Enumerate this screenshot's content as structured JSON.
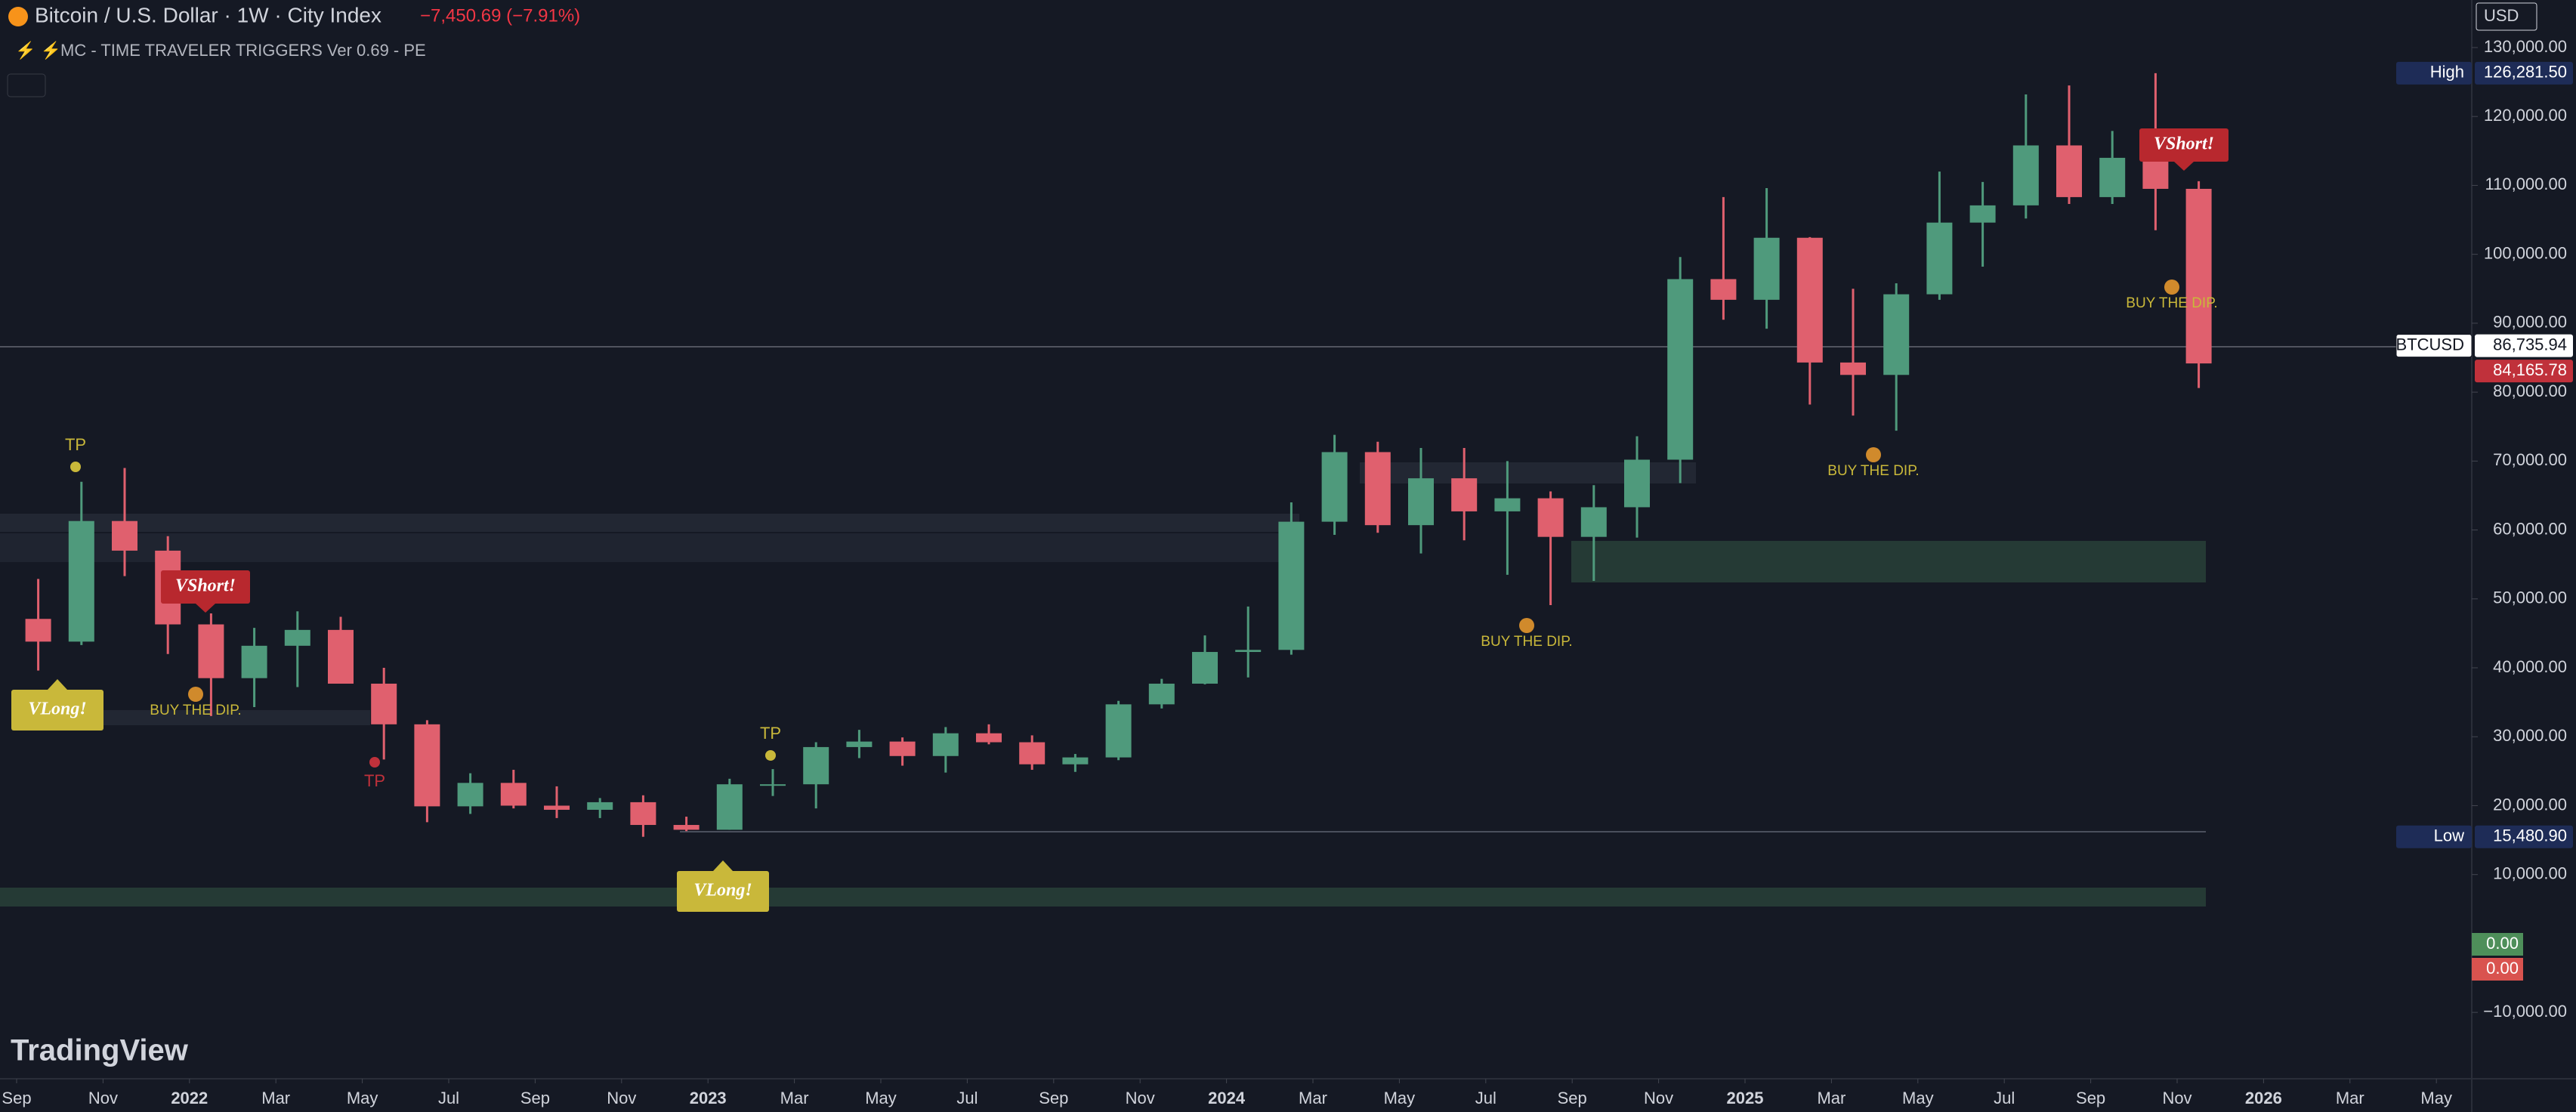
{
  "chart_data": {
    "type": "candlestick",
    "title": "Bitcoin / U.S. Dollar · 1W · City Index",
    "change": "−7,450.69 (−7.91%)",
    "indicator": "MC - TIME TRAVELER TRIGGERS Ver 0.69 - PE",
    "currency": "USD",
    "brand": "TradingView",
    "up_color": "#4f9a7c",
    "down_color": "#e0606e",
    "x": [
      "2021-09",
      "2021-10",
      "2021-11",
      "2021-12",
      "2022-01",
      "2022-02",
      "2022-03",
      "2022-04",
      "2022-05",
      "2022-06",
      "2022-07",
      "2022-08",
      "2022-09",
      "2022-10",
      "2022-11",
      "2022-12",
      "2023-01",
      "2023-02",
      "2023-03",
      "2023-04",
      "2023-05",
      "2023-06",
      "2023-07",
      "2023-08",
      "2023-09",
      "2023-10",
      "2023-11",
      "2023-12",
      "2024-01",
      "2024-02",
      "2024-03",
      "2024-04",
      "2024-05",
      "2024-06",
      "2024-07",
      "2024-08",
      "2024-09",
      "2024-10",
      "2024-11",
      "2024-12",
      "2025-01",
      "2025-02",
      "2025-03",
      "2025-04",
      "2025-05",
      "2025-06",
      "2025-07",
      "2025-08",
      "2025-09",
      "2025-10",
      "2025-11"
    ],
    "open": [
      47100,
      43800,
      61300,
      57000,
      46300,
      38500,
      43200,
      45500,
      37700,
      31800,
      19900,
      23300,
      20000,
      19400,
      20500,
      17200,
      16500,
      23100,
      23100,
      28500,
      29300,
      27200,
      30500,
      29200,
      26000,
      27000,
      34700,
      37700,
      42300,
      42600,
      61200,
      71300,
      60700,
      67500,
      62700,
      64600,
      59000,
      63300,
      70200,
      96400,
      93400,
      102400,
      84300,
      82500,
      94200,
      104600,
      107100,
      115800,
      108300,
      114000,
      109500
    ],
    "high": [
      52900,
      67000,
      69000,
      59100,
      47900,
      45800,
      48200,
      47400,
      40000,
      32400,
      24700,
      25200,
      22800,
      21100,
      21500,
      18400,
      23900,
      25300,
      29200,
      31000,
      29900,
      31400,
      31800,
      30200,
      27500,
      35200,
      38400,
      44700,
      48900,
      64000,
      73800,
      72800,
      71900,
      71900,
      70000,
      65600,
      66500,
      73600,
      99600,
      108300,
      109600,
      102500,
      95000,
      95800,
      112000,
      110500,
      123200,
      124500,
      117900,
      126281.5,
      110600
    ],
    "low": [
      39600,
      43300,
      53300,
      42000,
      33000,
      34300,
      37200,
      37700,
      26700,
      17600,
      18800,
      19600,
      18200,
      18200,
      15480.9,
      16300,
      16500,
      21400,
      19600,
      26900,
      25800,
      24800,
      28900,
      25200,
      24900,
      26600,
      34100,
      37600,
      38600,
      41900,
      59300,
      59600,
      56600,
      58500,
      53500,
      49100,
      52600,
      58900,
      66800,
      90500,
      89200,
      78200,
      76600,
      74400,
      93400,
      98200,
      105200,
      107300,
      107300,
      103500,
      80600
    ],
    "close": [
      43800,
      61300,
      57000,
      46300,
      38500,
      43200,
      45500,
      37700,
      31800,
      19900,
      23300,
      20000,
      19400,
      20500,
      17200,
      16500,
      23100,
      23100,
      28500,
      29300,
      27200,
      30500,
      29200,
      26000,
      27000,
      34700,
      37700,
      42300,
      42600,
      61200,
      71300,
      60700,
      67500,
      62700,
      64600,
      59000,
      63300,
      70200,
      96400,
      93400,
      102400,
      84300,
      82500,
      94200,
      104600,
      107100,
      115800,
      108300,
      114000,
      109500,
      84165.78
    ],
    "ylim": [
      -19300,
      136900
    ],
    "yticks": [
      {
        "value": -10000,
        "label": "−10,000.00"
      },
      {
        "value": 10000,
        "label": "10,000.00"
      },
      {
        "value": 20000,
        "label": "20,000.00"
      },
      {
        "value": 30000,
        "label": "30,000.00"
      },
      {
        "value": 40000,
        "label": "40,000.00"
      },
      {
        "value": 50000,
        "label": "50,000.00"
      },
      {
        "value": 60000,
        "label": "60,000.00"
      },
      {
        "value": 70000,
        "label": "70,000.00"
      },
      {
        "value": 80000,
        "label": "80,000.00"
      },
      {
        "value": 90000,
        "label": "90,000.00"
      },
      {
        "value": 100000,
        "label": "100,000.00"
      },
      {
        "value": 110000,
        "label": "110,000.00"
      },
      {
        "value": 120000,
        "label": "120,000.00"
      },
      {
        "value": 130000,
        "label": "130,000.00"
      }
    ],
    "xticks": [
      {
        "value": "2021-09",
        "label": "Sep"
      },
      {
        "value": "2021-11",
        "label": "Nov"
      },
      {
        "value": "2022-01",
        "label": "2022"
      },
      {
        "value": "2022-03",
        "label": "Mar"
      },
      {
        "value": "2022-05",
        "label": "May"
      },
      {
        "value": "2022-07",
        "label": "Jul"
      },
      {
        "value": "2022-09",
        "label": "Sep"
      },
      {
        "value": "2022-11",
        "label": "Nov"
      },
      {
        "value": "2023-01",
        "label": "2023"
      },
      {
        "value": "2023-03",
        "label": "Mar"
      },
      {
        "value": "2023-05",
        "label": "May"
      },
      {
        "value": "2023-07",
        "label": "Jul"
      },
      {
        "value": "2023-09",
        "label": "Sep"
      },
      {
        "value": "2023-11",
        "label": "Nov"
      },
      {
        "value": "2024-01",
        "label": "2024"
      },
      {
        "value": "2024-03",
        "label": "Mar"
      },
      {
        "value": "2024-05",
        "label": "May"
      },
      {
        "value": "2024-07",
        "label": "Jul"
      },
      {
        "value": "2024-09",
        "label": "Sep"
      },
      {
        "value": "2024-11",
        "label": "Nov"
      },
      {
        "value": "2025-01",
        "label": "2025"
      },
      {
        "value": "2025-03",
        "label": "Mar"
      },
      {
        "value": "2025-05",
        "label": "May"
      },
      {
        "value": "2025-07",
        "label": "Jul"
      },
      {
        "value": "2025-09",
        "label": "Sep"
      },
      {
        "value": "2025-11",
        "label": "Nov"
      },
      {
        "value": "2026-01",
        "label": "2026"
      },
      {
        "value": "2026-03",
        "label": "Mar"
      },
      {
        "value": "2026-05",
        "label": "May"
      }
    ],
    "price_markers": [
      {
        "name": "High",
        "value": 126281.5,
        "label": "126,281.50",
        "color": "#1e2c57"
      },
      {
        "name": "BTCUSD",
        "value": 86735.94,
        "label": "86,735.94",
        "color": "#ffffff"
      },
      {
        "value": 84165.78,
        "label": "84,165.78",
        "color": "#c0313b"
      },
      {
        "name": "Low",
        "value": 15480.9,
        "label": "15,480.90",
        "color": "#1e2c57"
      }
    ],
    "indicator_values": [
      {
        "value": 0,
        "label": "0.00",
        "color": "#4e8f5a"
      },
      {
        "value": 0,
        "label": "0.00",
        "color": "#d9534f"
      }
    ],
    "annotations": [
      "VLong!",
      "VLong!",
      "VShort!",
      "VShort!",
      "TP",
      "TP",
      "TP",
      "BUY THE DIP.",
      "BUY THE DIP.",
      "BUY THE DIP.",
      "BUY THE DIP."
    ]
  }
}
